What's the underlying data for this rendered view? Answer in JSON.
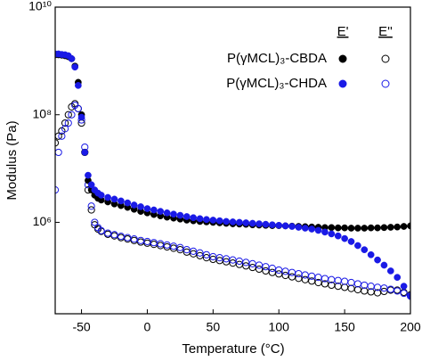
{
  "chart_data": {
    "type": "scatter",
    "xlabel": "Temperature (°C)",
    "ylabel": "Modulus (Pa)",
    "x": [
      -70,
      -67.5,
      -65,
      -62.5,
      -60,
      -57.5,
      -55,
      -52.5,
      -50,
      -47.5,
      -45,
      -42.5,
      -40,
      -37.5,
      -35,
      -30,
      -25,
      -20,
      -15,
      -10,
      -5,
      0,
      5,
      10,
      15,
      20,
      25,
      30,
      35,
      40,
      45,
      50,
      55,
      60,
      65,
      70,
      75,
      80,
      85,
      90,
      95,
      100,
      105,
      110,
      115,
      120,
      125,
      130,
      135,
      140,
      145,
      150,
      155,
      160,
      165,
      170,
      175,
      180,
      185,
      190,
      195,
      200
    ],
    "xlim": [
      -70,
      200
    ],
    "xticks": [
      -50,
      0,
      50,
      100,
      150,
      200
    ],
    "ylim": [
      20000,
      10000000000
    ],
    "yticks": [
      {
        "value": 1000000,
        "label": "10⁶"
      },
      {
        "value": 100000000,
        "label": "10⁸"
      },
      {
        "value": 10000000000,
        "label": "10¹⁰"
      }
    ],
    "log_y": true,
    "legend_columns": [
      "E'",
      "E''"
    ],
    "series": [
      {
        "name": "P(γMCL)₃-CBDA",
        "color": "#000000",
        "values": [
          1300000000.0,
          1300000000.0,
          1280000000.0,
          1250000000.0,
          1200000000.0,
          1100000000.0,
          800000000.0,
          400000000.0,
          100000000.0,
          20000000.0,
          6000000.0,
          4000000.0,
          3200000.0,
          2800000.0,
          2600000.0,
          2400000.0,
          2200000.0,
          2050000.0,
          1900000.0,
          1750000.0,
          1600000.0,
          1500000.0,
          1400000.0,
          1320000.0,
          1250000.0,
          1200000.0,
          1150000.0,
          1100000.0,
          1070000.0,
          1040000.0,
          1020000.0,
          1000000.0,
          980000.0,
          960000.0,
          940000.0,
          930000.0,
          920000.0,
          900000.0,
          890000.0,
          880000.0,
          870000.0,
          870000.0,
          860000.0,
          850000.0,
          840000.0,
          830000.0,
          820000.0,
          810000.0,
          800000.0,
          800000.0,
          790000.0,
          790000.0,
          780000.0,
          780000.0,
          780000.0,
          790000.0,
          790000.0,
          800000.0,
          810000.0,
          820000.0,
          840000.0,
          860000.0
        ],
        "loss_values": [
          30000000.0,
          40000000.0,
          50000000.0,
          70000000.0,
          100000000.0,
          140000000.0,
          160000000.0,
          130000000.0,
          70000000.0,
          20000000.0,
          4000000.0,
          1700000.0,
          900000.0,
          750000.0,
          680000.0,
          600000.0,
          560000.0,
          520000.0,
          490000.0,
          460000.0,
          430000.0,
          410000.0,
          390000.0,
          370000.0,
          350000.0,
          330000.0,
          310000.0,
          280000.0,
          260000.0,
          240000.0,
          220000.0,
          205000.0,
          195000.0,
          185000.0,
          175000.0,
          165000.0,
          155000.0,
          145000.0,
          135000.0,
          125000.0,
          117000.0,
          110000.0,
          103000.0,
          97000.0,
          91000.0,
          86000.0,
          81000.0,
          76000.0,
          72000.0,
          68000.0,
          65000.0,
          62000.0,
          59000.0,
          56000.0,
          53000.0,
          51000.0,
          49000.0,
          52000.0,
          55000.0,
          55000.0,
          50000.0,
          45000.0
        ]
      },
      {
        "name": "P(γMCL)₃-CHDA",
        "color": "#1a1ae6",
        "values": [
          1350000000.0,
          1350000000.0,
          1320000000.0,
          1300000000.0,
          1250000000.0,
          1100000000.0,
          770000000.0,
          350000000.0,
          90000000.0,
          20000000.0,
          7500000.0,
          5000000.0,
          4000000.0,
          3500000.0,
          3200000.0,
          2900000.0,
          2700000.0,
          2500000.0,
          2300000.0,
          2100000.0,
          1950000.0,
          1800000.0,
          1700000.0,
          1600000.0,
          1500000.0,
          1420000.0,
          1350000.0,
          1280000.0,
          1220000.0,
          1170000.0,
          1130000.0,
          1100000.0,
          1070000.0,
          1040000.0,
          1020000.0,
          1000000.0,
          980000.0,
          960000.0,
          940000.0,
          920000.0,
          900000.0,
          880000.0,
          860000.0,
          840000.0,
          810000.0,
          780000.0,
          750000.0,
          710000.0,
          660000.0,
          610000.0,
          560000.0,
          500000.0,
          440000.0,
          370000.0,
          310000.0,
          250000.0,
          200000.0,
          160000.0,
          125000.0,
          95000.0,
          65000.0,
          42000.0
        ],
        "loss_values": [
          4000000.0,
          20000000.0,
          40000000.0,
          55000000.0,
          70000000.0,
          100000000.0,
          150000000.0,
          130000000.0,
          80000000.0,
          25000000.0,
          5000000.0,
          2000000.0,
          1000000.0,
          800000.0,
          700000.0,
          630000.0,
          590000.0,
          550000.0,
          520000.0,
          490000.0,
          460000.0,
          440000.0,
          420000.0,
          400000.0,
          380000.0,
          360000.0,
          340000.0,
          310000.0,
          290000.0,
          270000.0,
          250000.0,
          230000.0,
          220000.0,
          210000.0,
          200000.0,
          190000.0,
          180000.0,
          170000.0,
          160000.0,
          150000.0,
          140000.0,
          130000.0,
          123000.0,
          117000.0,
          111000.0,
          105000.0,
          100000.0,
          95000.0,
          90000.0,
          86000.0,
          83000.0,
          80000.0,
          76000.0,
          72000.0,
          68000.0,
          65000.0,
          62000.0,
          60000.0,
          57000.0,
          53000.0,
          48000.0,
          43000.0
        ]
      }
    ]
  }
}
